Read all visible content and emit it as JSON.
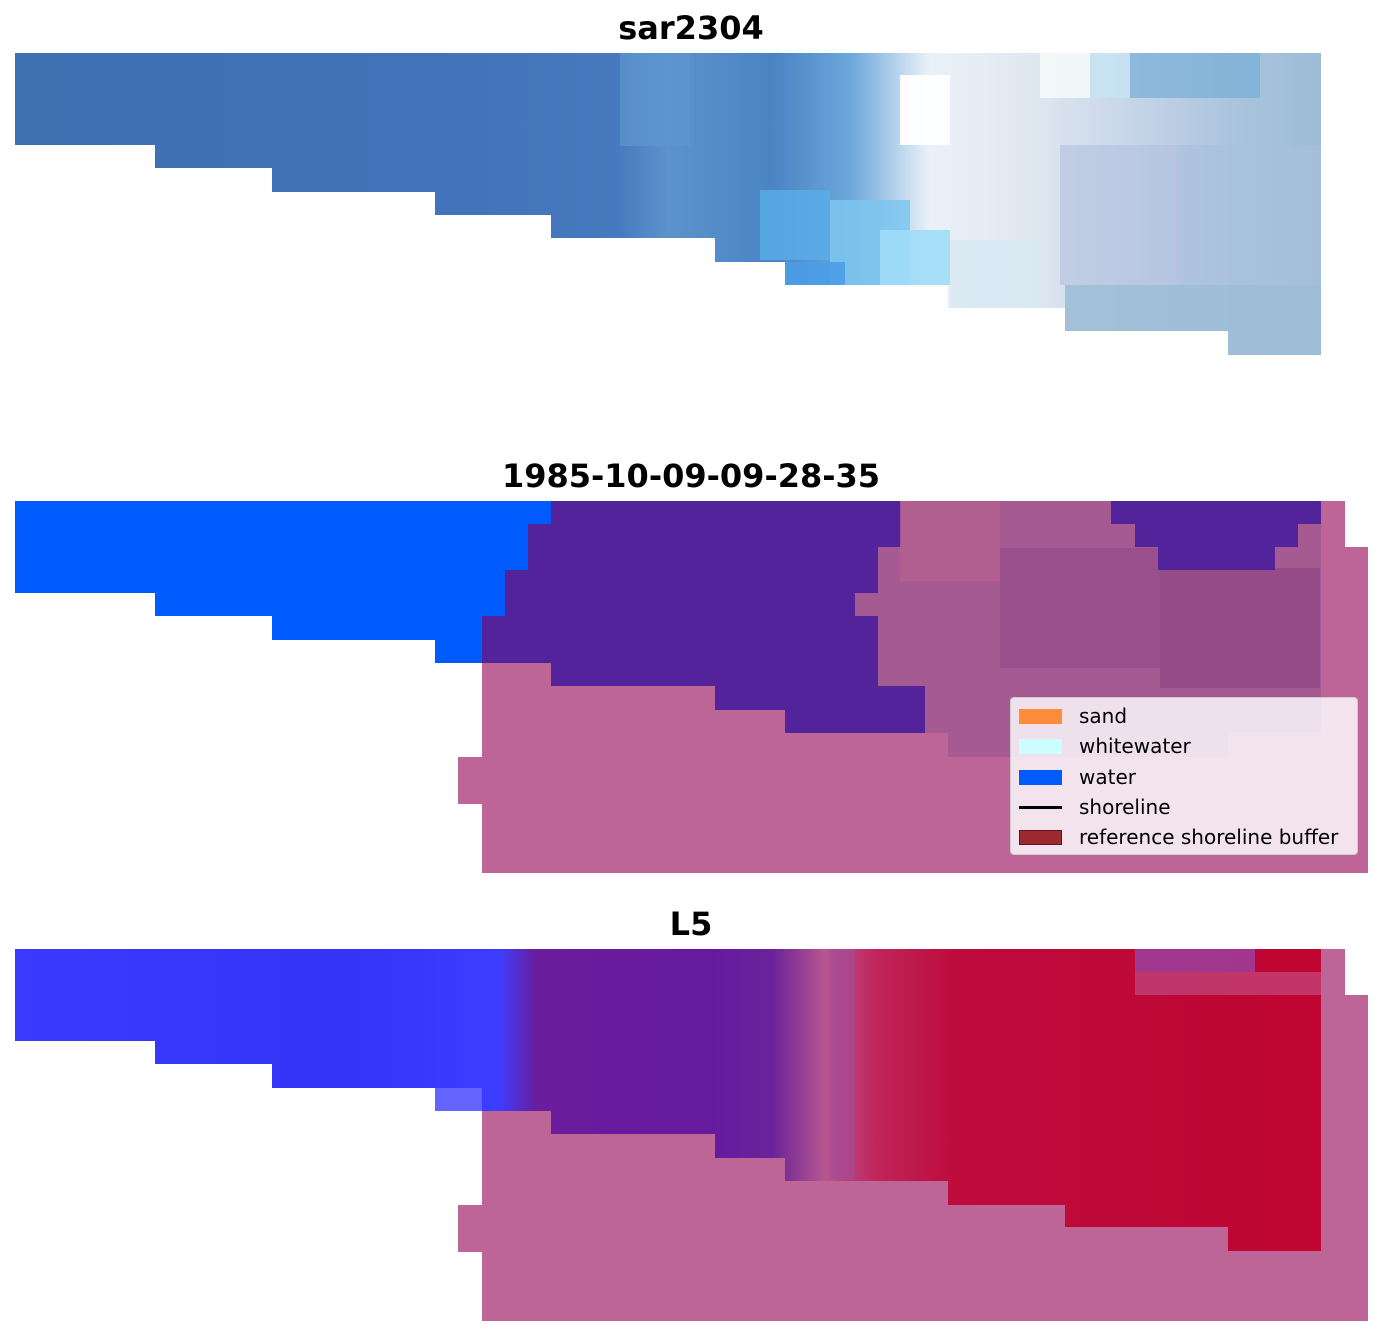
{
  "panels": [
    {
      "title": "sar2304"
    },
    {
      "title": "1985-10-09-09-28-35"
    },
    {
      "title": "L5"
    }
  ],
  "legend": {
    "items": [
      {
        "label": "sand",
        "kind": "patch",
        "color": "#ff8c3a"
      },
      {
        "label": "whitewater",
        "kind": "patch",
        "color": "#cdfdff"
      },
      {
        "label": "water",
        "kind": "patch",
        "color": "#005bff"
      },
      {
        "label": "shoreline",
        "kind": "line",
        "color": "#000000"
      },
      {
        "label": "reference shoreline buffer",
        "kind": "patch",
        "color": "#9a2a2f"
      }
    ]
  },
  "colors": {
    "sar_dark_blue": "#3f73b6",
    "sar_light_blue": "#93bedc",
    "sar_white": "#f7fafd",
    "water_class": "#005bff",
    "mixed_class": "#52239a",
    "buffer_pink": "#bc6596",
    "l5_blue": "#3d3dff",
    "l5_purple": "#6a1d9c",
    "l5_red": "#bf0532"
  }
}
